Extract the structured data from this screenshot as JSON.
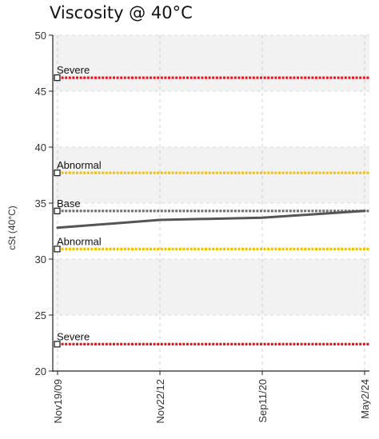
{
  "chart_data": {
    "type": "line",
    "title": "Viscosity @ 40°C",
    "ylabel": "cSt (40°C)",
    "xlabel": "",
    "ylim": [
      20,
      50
    ],
    "yticks": [
      20,
      25,
      30,
      35,
      40,
      45,
      50
    ],
    "categories": [
      "Nov19/09",
      "Nov22/12",
      "Sep11/20",
      "May2/24"
    ],
    "series": [
      {
        "values": [
          32.8,
          33.5,
          33.7,
          34.3
        ],
        "color": "#555555"
      }
    ],
    "reference_lines": [
      {
        "label": "Severe",
        "value": 46.2,
        "color": "#e8141e"
      },
      {
        "label": "Abnormal",
        "value": 37.7,
        "color": "#f2c200"
      },
      {
        "label": "Base",
        "value": 34.3,
        "color": "#707070"
      },
      {
        "label": "Abnormal",
        "value": 30.9,
        "color": "#f2c200"
      },
      {
        "label": "Severe",
        "value": 22.4,
        "color": "#e8141e"
      }
    ],
    "grid": true,
    "band_colors": [
      "#f2f2f2",
      "#ffffff"
    ]
  }
}
